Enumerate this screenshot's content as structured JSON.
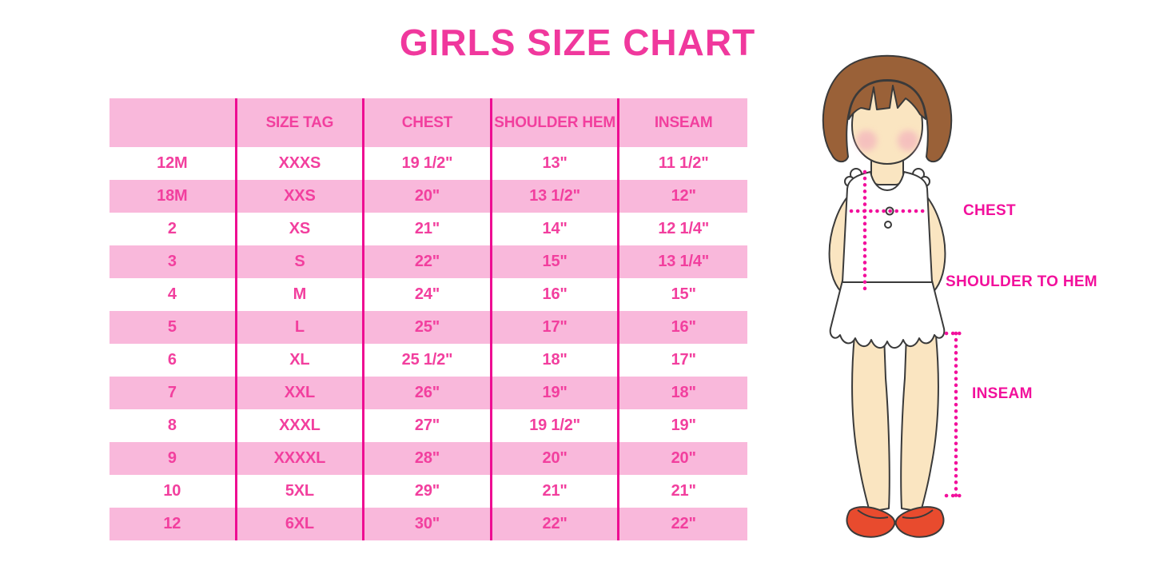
{
  "chart_data": {
    "type": "table",
    "title": "GIRLS SIZE CHART",
    "columns": [
      "",
      "SIZE TAG",
      "CHEST",
      "SHOULDER HEM",
      "INSEAM"
    ],
    "rows": [
      [
        "12M",
        "XXXS",
        "19 1/2\"",
        "13\"",
        "11 1/2\""
      ],
      [
        "18M",
        "XXS",
        "20\"",
        "13 1/2\"",
        "12\""
      ],
      [
        "2",
        "XS",
        "21\"",
        "14\"",
        "12 1/4\""
      ],
      [
        "3",
        "S",
        "22\"",
        "15\"",
        "13 1/4\""
      ],
      [
        "4",
        "M",
        "24\"",
        "16\"",
        "15\""
      ],
      [
        "5",
        "L",
        "25\"",
        "17\"",
        "16\""
      ],
      [
        "6",
        "XL",
        "25 1/2\"",
        "18\"",
        "17\""
      ],
      [
        "7",
        "XXL",
        "26\"",
        "19\"",
        "18\""
      ],
      [
        "8",
        "XXXL",
        "27\"",
        "19 1/2\"",
        "19\""
      ],
      [
        "9",
        "XXXXL",
        "28\"",
        "20\"",
        "20\""
      ],
      [
        "10",
        "5XL",
        "29\"",
        "21\"",
        "21\""
      ],
      [
        "12",
        "6XL",
        "30\"",
        "22\"",
        "22\""
      ]
    ]
  },
  "figure": {
    "labels": {
      "chest": "CHEST",
      "shoulder_to_hem": "SHOULDER TO HEM",
      "inseam": "INSEAM"
    }
  },
  "colors": {
    "title_pink": "#F0389D",
    "row_pink": "#F9B8DB",
    "divider_magenta": "#EE0D92",
    "table_text_pink": "#F23F9E",
    "annotation_magenta": "#F2109C",
    "hair_brown": "#9A6138",
    "skin": "#FAE5C1",
    "shoe_red": "#E84B2E"
  }
}
